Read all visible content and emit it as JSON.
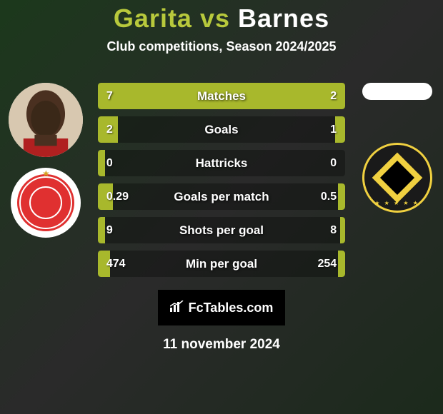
{
  "title": {
    "player1": "Garita",
    "vs": "vs",
    "player2": "Barnes"
  },
  "subtitle": "Club competitions, Season 2024/2025",
  "stats": [
    {
      "label": "Matches",
      "left_val": "7",
      "right_val": "2",
      "left_pct": 73,
      "right_pct": 27
    },
    {
      "label": "Goals",
      "left_val": "2",
      "right_val": "1",
      "left_pct": 8,
      "right_pct": 4
    },
    {
      "label": "Hattricks",
      "left_val": "0",
      "right_val": "0",
      "left_pct": 3,
      "right_pct": 0
    },
    {
      "label": "Goals per match",
      "left_val": "0.29",
      "right_val": "0.5",
      "left_pct": 6,
      "right_pct": 3
    },
    {
      "label": "Shots per goal",
      "left_val": "9",
      "right_val": "8",
      "left_pct": 3,
      "right_pct": 2
    },
    {
      "label": "Min per goal",
      "left_val": "474",
      "right_val": "254",
      "left_pct": 5,
      "right_pct": 3
    }
  ],
  "bar_fill_color": "#a8b82c",
  "footer_brand": "FcTables.com",
  "date": "11 november 2024",
  "player1_photo_bg": "#d8c8b0",
  "player2_photo_bg": "#ffffff",
  "club1_bg": "#ffffff",
  "club1_inner": "#e03030",
  "club2_bg": "#1a1a1a",
  "club2_accent": "#f0d040"
}
